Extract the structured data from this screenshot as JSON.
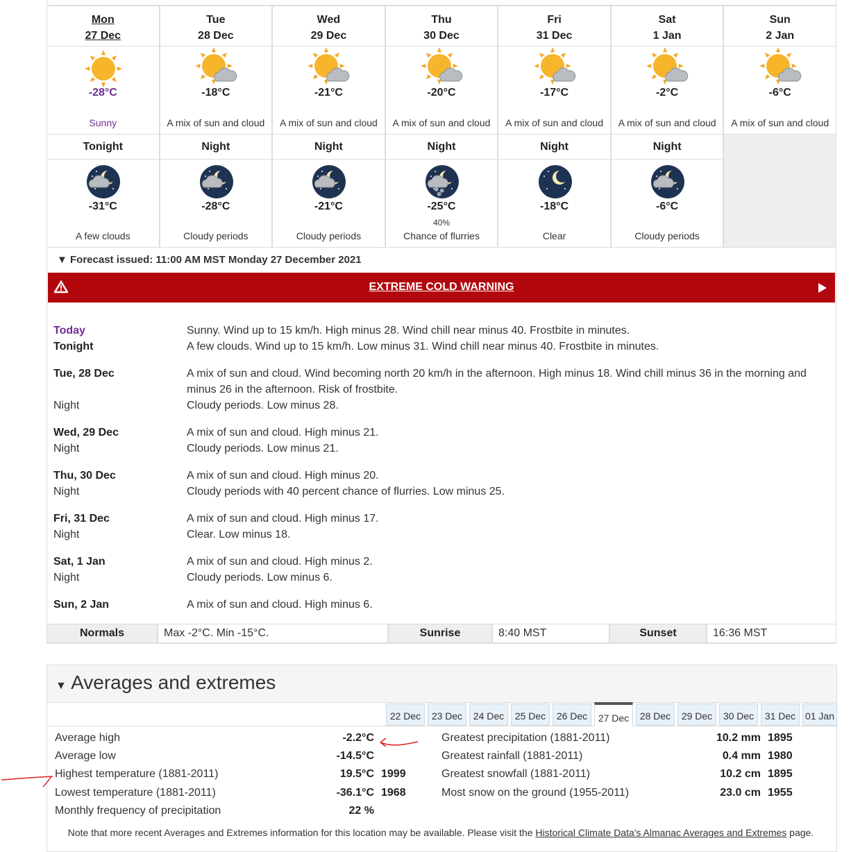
{
  "days": [
    {
      "day": "Mon",
      "date": "27 Dec",
      "temp": "-28°C",
      "condition": "Sunny"
    },
    {
      "day": "Tue",
      "date": "28 Dec",
      "temp": "-18°C",
      "condition": "A mix of sun and cloud"
    },
    {
      "day": "Wed",
      "date": "29 Dec",
      "temp": "-21°C",
      "condition": "A mix of sun and cloud"
    },
    {
      "day": "Thu",
      "date": "30 Dec",
      "temp": "-20°C",
      "condition": "A mix of sun and cloud"
    },
    {
      "day": "Fri",
      "date": "31 Dec",
      "temp": "-17°C",
      "condition": "A mix of sun and cloud"
    },
    {
      "day": "Sat",
      "date": "1 Jan",
      "temp": "-2°C",
      "condition": "A mix of sun and cloud"
    },
    {
      "day": "Sun",
      "date": "2 Jan",
      "temp": "-6°C",
      "condition": "A mix of sun and cloud"
    }
  ],
  "nights": [
    {
      "label": "Tonight",
      "temp": "-31°C",
      "condition": "A few clouds"
    },
    {
      "label": "Night",
      "temp": "-28°C",
      "condition": "Cloudy periods"
    },
    {
      "label": "Night",
      "temp": "-21°C",
      "condition": "Cloudy periods"
    },
    {
      "label": "Night",
      "temp": "-25°C",
      "pop": "40%",
      "condition": "Chance of flurries"
    },
    {
      "label": "Night",
      "temp": "-18°C",
      "condition": "Clear"
    },
    {
      "label": "Night",
      "temp": "-6°C",
      "condition": "Cloudy periods"
    }
  ],
  "forecast_issued": "Forecast issued: 11:00 AM MST Monday 27 December 2021",
  "warning": "EXTREME COLD WARNING",
  "details": [
    {
      "day": "Today",
      "day_text": "Sunny. Wind up to 15 km/h. High minus 28. Wind chill near minus 40. Frostbite in minutes.",
      "night": "Tonight",
      "night_text": "A few clouds. Wind up to 15 km/h. Low minus 31. Wind chill near minus 40. Frostbite in minutes."
    },
    {
      "day": "Tue, 28 Dec",
      "day_text": "A mix of sun and cloud. Wind becoming north 20 km/h in the afternoon. High minus 18. Wind chill minus 36 in the morning and minus 26 in the afternoon. Risk of frostbite.",
      "night": "Night",
      "night_text": "Cloudy periods. Low minus 28."
    },
    {
      "day": "Wed, 29 Dec",
      "day_text": "A mix of sun and cloud. High minus 21.",
      "night": "Night",
      "night_text": "Cloudy periods. Low minus 21."
    },
    {
      "day": "Thu, 30 Dec",
      "day_text": "A mix of sun and cloud. High minus 20.",
      "night": "Night",
      "night_text": "Cloudy periods with 40 percent chance of flurries. Low minus 25."
    },
    {
      "day": "Fri, 31 Dec",
      "day_text": "A mix of sun and cloud. High minus 17.",
      "night": "Night",
      "night_text": "Clear. Low minus 18."
    },
    {
      "day": "Sat, 1 Jan",
      "day_text": "A mix of sun and cloud. High minus 2.",
      "night": "Night",
      "night_text": "Cloudy periods. Low minus 6."
    },
    {
      "day": "Sun, 2 Jan",
      "day_text": "A mix of sun and cloud. High minus 6."
    }
  ],
  "normals": [
    "Normals",
    "Max -2°C. Min -15°C.",
    "Sunrise",
    "8:40 MST",
    "Sunset",
    "16:36 MST"
  ],
  "averages": {
    "title": "Averages and extremes",
    "tabs": [
      "22 Dec",
      "23 Dec",
      "24 Dec",
      "25 Dec",
      "26 Dec",
      "27 Dec",
      "28 Dec",
      "29 Dec",
      "30 Dec",
      "31 Dec",
      "01 Jan"
    ],
    "left": [
      [
        "Average high",
        "-2.2°C"
      ],
      [
        "Average low",
        "-14.5°C"
      ],
      [
        "Highest temperature (1881-2011)",
        "19.5°C",
        "1999"
      ],
      [
        "Lowest temperature (1881-2011)",
        "-36.1°C",
        "1968"
      ],
      [
        "Monthly frequency of precipitation",
        "22 %"
      ]
    ],
    "right": [
      [
        "Greatest precipitation (1881-2011)",
        "10.2 mm",
        "1895"
      ],
      [
        "Greatest rainfall (1881-2011)",
        "0.4 mm",
        "1980"
      ],
      [
        "Greatest snowfall (1881-2011)",
        "10.2 cm",
        "1895"
      ],
      [
        "Most snow on the ground (1955-2011)",
        "23.0 cm",
        "1955"
      ]
    ],
    "note": {
      "before": "Note that more recent Averages and Extremes information for this location may be available. Please visit the ",
      "link": "Historical Climate Data's Almanac Averages and Extremes",
      "after": " page."
    }
  }
}
